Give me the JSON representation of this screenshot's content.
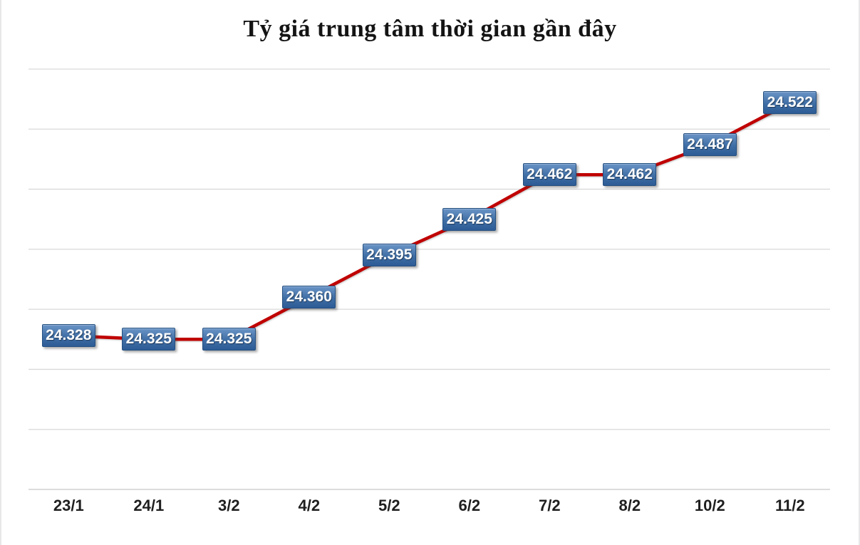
{
  "page": {
    "background": "#FFFFFF"
  },
  "chart_data": {
    "type": "line",
    "title": "Tỷ giá trung tâm thời gian gần đây",
    "categories": [
      "23/1",
      "24/1",
      "3/2",
      "4/2",
      "5/2",
      "6/2",
      "7/2",
      "8/2",
      "10/2",
      "11/2"
    ],
    "values": [
      24.328,
      24.325,
      24.325,
      24.36,
      24.395,
      24.425,
      24.462,
      24.462,
      24.487,
      24.522
    ],
    "point_labels": [
      "24.328",
      "24.325",
      "24.325",
      "24.360",
      "24.395",
      "24.425",
      "24.462",
      "24.462",
      "24.487",
      "24.522"
    ],
    "xlabel": "",
    "ylabel": "",
    "ylim": [
      24.2,
      24.55
    ],
    "gridline_step": 0.05,
    "grid": "horizontal-only",
    "y_axis_tick_labels_visible": false,
    "legend": "none",
    "data_label_style": "blue gradient box centered on point",
    "colors": {
      "line": "#C00000",
      "gridline": "#D9D9D9",
      "axis_line": "#C8C8C8",
      "label_box_top": "#6A94C6",
      "label_box_mid": "#3F6EA5",
      "label_box_bottom": "#2D5B95",
      "label_box_border": "#234F80",
      "label_text": "#FFFFFF",
      "title_text": "#141414",
      "x_axis_text": "#1F1F1F",
      "page_background": "#FFFFFF"
    }
  }
}
